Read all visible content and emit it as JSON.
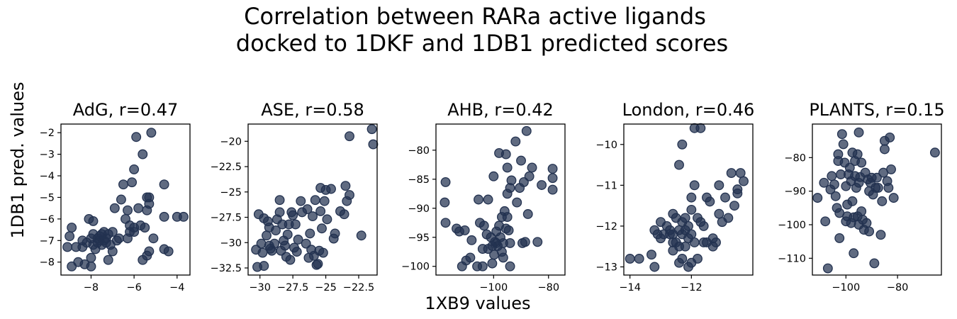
{
  "figure": {
    "title_line1": "Correlation between RARa active ligands",
    "title_line2": "docked to 1DKF and 1DB1 predicted scores",
    "xlabel": "1XB9 values",
    "ylabel": "1DB1 pred. values",
    "marker_color": "#233250"
  },
  "chart_data": [
    {
      "type": "scatter",
      "title": "AdG, r=0.47",
      "xlim": [
        -9.4,
        -3.4
      ],
      "ylim": [
        -8.6,
        -1.6
      ],
      "xticks": [
        -8,
        -6,
        -4
      ],
      "yticks": [
        -8,
        -7,
        -6,
        -5,
        -4,
        -3,
        -2
      ],
      "points": [
        [
          -9.1,
          -7.3
        ],
        [
          -9.0,
          -6.8
        ],
        [
          -8.9,
          -6.4
        ],
        [
          -8.9,
          -8.2
        ],
        [
          -8.7,
          -7.3
        ],
        [
          -8.6,
          -8.0
        ],
        [
          -8.4,
          -7.0
        ],
        [
          -8.4,
          -7.3
        ],
        [
          -8.3,
          -8.1
        ],
        [
          -8.2,
          -7.1
        ],
        [
          -8.1,
          -6.0
        ],
        [
          -8.0,
          -7.8
        ],
        [
          -8.0,
          -8.2
        ],
        [
          -8.0,
          -6.9
        ],
        [
          -7.9,
          -7.2
        ],
        [
          -7.9,
          -6.7
        ],
        [
          -7.9,
          -6.1
        ],
        [
          -7.8,
          -7.4
        ],
        [
          -7.7,
          -6.9
        ],
        [
          -7.7,
          -7.1
        ],
        [
          -7.6,
          -7.0
        ],
        [
          -7.6,
          -6.8
        ],
        [
          -7.5,
          -6.7
        ],
        [
          -7.5,
          -7.2
        ],
        [
          -7.4,
          -6.6
        ],
        [
          -7.4,
          -7.0
        ],
        [
          -7.3,
          -6.9
        ],
        [
          -7.3,
          -7.1
        ],
        [
          -7.2,
          -7.9
        ],
        [
          -7.2,
          -6.7
        ],
        [
          -7.1,
          -7.2
        ],
        [
          -7.0,
          -7.5
        ],
        [
          -7.0,
          -6.6
        ],
        [
          -6.9,
          -5.5
        ],
        [
          -6.8,
          -7.0
        ],
        [
          -6.7,
          -6.9
        ],
        [
          -6.6,
          -5.1
        ],
        [
          -6.5,
          -4.4
        ],
        [
          -6.4,
          -6.0
        ],
        [
          -6.3,
          -6.9
        ],
        [
          -6.3,
          -5.6
        ],
        [
          -6.2,
          -6.3
        ],
        [
          -6.2,
          -6.6
        ],
        [
          -6.1,
          -4.3
        ],
        [
          -6.0,
          -3.7
        ],
        [
          -6.0,
          -6.4
        ],
        [
          -6.0,
          -6.6
        ],
        [
          -5.9,
          -2.2
        ],
        [
          -5.8,
          -5.5
        ],
        [
          -5.7,
          -6.3
        ],
        [
          -5.6,
          -3.0
        ],
        [
          -5.6,
          -7.9
        ],
        [
          -5.5,
          -6.4
        ],
        [
          -5.4,
          -5.6
        ],
        [
          -5.4,
          -7.7
        ],
        [
          -5.4,
          -5.0
        ],
        [
          -5.3,
          -7.5
        ],
        [
          -5.3,
          -5.3
        ],
        [
          -5.3,
          -5.0
        ],
        [
          -5.2,
          -2.0
        ],
        [
          -5.1,
          -6.9
        ],
        [
          -4.6,
          -4.4
        ],
        [
          -4.6,
          -5.9
        ],
        [
          -4.6,
          -7.4
        ],
        [
          -4.4,
          -7.5
        ],
        [
          -4.0,
          -5.9
        ],
        [
          -3.7,
          -5.9
        ]
      ]
    },
    {
      "type": "scatter",
      "title": "ASE, r=0.58",
      "xlim": [
        -30.9,
        -21.1
      ],
      "ylim": [
        -33.2,
        -18.3
      ],
      "xticks": [
        -30.0,
        -27.5,
        -25.0,
        -22.5
      ],
      "yticks": [
        -32.5,
        -30.0,
        -27.5,
        -25.0,
        -22.5,
        -20.0
      ],
      "points": [
        [
          -30.3,
          -30.7
        ],
        [
          -30.2,
          -32.4
        ],
        [
          -30.1,
          -27.2
        ],
        [
          -29.9,
          -30.1
        ],
        [
          -29.8,
          -31.0
        ],
        [
          -29.7,
          -32.3
        ],
        [
          -29.7,
          -27.6
        ],
        [
          -29.5,
          -29.3
        ],
        [
          -29.4,
          -27.9
        ],
        [
          -29.3,
          -28.5
        ],
        [
          -29.3,
          -30.3
        ],
        [
          -29.2,
          -30.6
        ],
        [
          -29.1,
          -30.8
        ],
        [
          -28.9,
          -30.1
        ],
        [
          -28.8,
          -28.8
        ],
        [
          -28.7,
          -27.7
        ],
        [
          -28.5,
          -25.8
        ],
        [
          -28.5,
          -27.0
        ],
        [
          -28.4,
          -30.8
        ],
        [
          -28.3,
          -28.2
        ],
        [
          -28.2,
          -29.8
        ],
        [
          -28.1,
          -30.3
        ],
        [
          -28.0,
          -31.4
        ],
        [
          -27.9,
          -29.2
        ],
        [
          -27.8,
          -28.2
        ],
        [
          -27.7,
          -31.7
        ],
        [
          -27.6,
          -27.0
        ],
        [
          -27.5,
          -27.3
        ],
        [
          -27.4,
          -30.5
        ],
        [
          -27.3,
          -28.2
        ],
        [
          -27.2,
          -30.9
        ],
        [
          -27.1,
          -29.7
        ],
        [
          -26.9,
          -25.9
        ],
        [
          -26.8,
          -27.0
        ],
        [
          -26.5,
          -30.1
        ],
        [
          -26.4,
          -26.7
        ],
        [
          -26.3,
          -31.5
        ],
        [
          -26.2,
          -29.1
        ],
        [
          -26.1,
          -30.7
        ],
        [
          -26.0,
          -27.4
        ],
        [
          -25.9,
          -31.3
        ],
        [
          -25.8,
          -25.8
        ],
        [
          -25.7,
          -32.2
        ],
        [
          -25.6,
          -32.1
        ],
        [
          -25.5,
          -30.8
        ],
        [
          -25.4,
          -24.6
        ],
        [
          -25.4,
          -26.9
        ],
        [
          -25.3,
          -28.6
        ],
        [
          -25.2,
          -31.0
        ],
        [
          -25.1,
          -25.9
        ],
        [
          -25.0,
          -24.8
        ],
        [
          -24.9,
          -27.7
        ],
        [
          -24.6,
          -24.7
        ],
        [
          -24.4,
          -29.6
        ],
        [
          -24.3,
          -29.1
        ],
        [
          -23.9,
          -26.9
        ],
        [
          -23.6,
          -27.2
        ],
        [
          -23.5,
          -24.4
        ],
        [
          -23.4,
          -25.9
        ],
        [
          -23.2,
          -25.3
        ],
        [
          -23.2,
          -19.5
        ],
        [
          -22.3,
          -29.3
        ],
        [
          -21.5,
          -18.8
        ],
        [
          -21.4,
          -20.3
        ]
      ]
    },
    {
      "type": "scatter",
      "title": "AHB, r=0.42",
      "xlim": [
        -121,
        -74
      ],
      "ylim": [
        -101.5,
        -75.5
      ],
      "xticks": [
        -100,
        -80
      ],
      "yticks": [
        -100,
        -95,
        -90,
        -85,
        -80
      ],
      "points": [
        [
          -117.5,
          -85.5
        ],
        [
          -117.8,
          -89.0
        ],
        [
          -117.5,
          -92.5
        ],
        [
          -113.5,
          -93.5
        ],
        [
          -112.5,
          -94.0
        ],
        [
          -111.5,
          -100.0
        ],
        [
          -110.5,
          -93.8
        ],
        [
          -110.0,
          -99.0
        ],
        [
          -108.5,
          -98.5
        ],
        [
          -108.0,
          -95.5
        ],
        [
          -106.0,
          -100.0
        ],
        [
          -105.5,
          -88.5
        ],
        [
          -105.0,
          -92.5
        ],
        [
          -104.0,
          -97.0
        ],
        [
          -104.0,
          -100.0
        ],
        [
          -103.5,
          -93.0
        ],
        [
          -102.5,
          -94.5
        ],
        [
          -102.0,
          -88.5
        ],
        [
          -102.0,
          -97.0
        ],
        [
          -101.0,
          -95.0
        ],
        [
          -100.5,
          -96.5
        ],
        [
          -100.5,
          -99.5
        ],
        [
          -100.0,
          -84.5
        ],
        [
          -99.8,
          -98.0
        ],
        [
          -99.5,
          -95.8
        ],
        [
          -99.0,
          -94.0
        ],
        [
          -99.0,
          -96.0
        ],
        [
          -98.5,
          -96.5
        ],
        [
          -98.0,
          -93.0
        ],
        [
          -98.0,
          -80.5
        ],
        [
          -97.5,
          -95.0
        ],
        [
          -97.0,
          -91.5
        ],
        [
          -97.0,
          -97.5
        ],
        [
          -96.5,
          -96.0
        ],
        [
          -96.5,
          -98.5
        ],
        [
          -96.0,
          -90.5
        ],
        [
          -95.5,
          -80.7
        ],
        [
          -95.5,
          -93.5
        ],
        [
          -95.0,
          -83.0
        ],
        [
          -95.0,
          -87.5
        ],
        [
          -95.0,
          -91.5
        ],
        [
          -94.5,
          -93.8
        ],
        [
          -94.0,
          -86.5
        ],
        [
          -94.0,
          -96.0
        ],
        [
          -94.0,
          -100.0
        ],
        [
          -93.5,
          -85.2
        ],
        [
          -92.0,
          -78.5
        ],
        [
          -91.5,
          -89.0
        ],
        [
          -90.5,
          -86.5
        ],
        [
          -90.0,
          -81.8
        ],
        [
          -89.5,
          -96.0
        ],
        [
          -89.0,
          -85.5
        ],
        [
          -88.5,
          -95.8
        ],
        [
          -88.0,
          -76.7
        ],
        [
          -87.5,
          -91.0
        ],
        [
          -87.0,
          -84.5
        ],
        [
          -86.0,
          -83.0
        ],
        [
          -84.0,
          -95.8
        ],
        [
          -82.5,
          -86.0
        ],
        [
          -78.5,
          -83.2
        ],
        [
          -78.5,
          -84.8
        ],
        [
          -78.5,
          -86.8
        ]
      ]
    },
    {
      "type": "scatter",
      "title": "London, r=0.46",
      "xlim": [
        -14.2,
        -10.0
      ],
      "ylim": [
        -13.2,
        -9.5
      ],
      "xticks": [
        -14,
        -12
      ],
      "yticks": [
        -13,
        -12,
        -11,
        -10
      ],
      "points": [
        [
          -14.0,
          -12.8
        ],
        [
          -13.7,
          -12.8
        ],
        [
          -13.3,
          -12.7
        ],
        [
          -13.2,
          -13.0
        ],
        [
          -13.2,
          -12.1
        ],
        [
          -13.1,
          -12.2
        ],
        [
          -13.0,
          -11.9
        ],
        [
          -13.0,
          -12.3
        ],
        [
          -12.9,
          -12.2
        ],
        [
          -12.8,
          -12.0
        ],
        [
          -12.7,
          -12.1
        ],
        [
          -12.7,
          -12.2
        ],
        [
          -12.6,
          -11.7
        ],
        [
          -12.6,
          -12.2
        ],
        [
          -12.6,
          -12.4
        ],
        [
          -12.6,
          -12.6
        ],
        [
          -12.5,
          -11.8
        ],
        [
          -12.5,
          -12.4
        ],
        [
          -12.4,
          -12.5
        ],
        [
          -12.4,
          -12.1
        ],
        [
          -12.4,
          -12.9
        ],
        [
          -12.3,
          -11.9
        ],
        [
          -12.3,
          -12.2
        ],
        [
          -12.3,
          -12.8
        ],
        [
          -12.2,
          -12.5
        ],
        [
          -12.2,
          -11.8
        ],
        [
          -12.2,
          -12.1
        ],
        [
          -12.1,
          -13.0
        ],
        [
          -12.1,
          -12.0
        ],
        [
          -12.1,
          -12.3
        ],
        [
          -12.0,
          -12.2
        ],
        [
          -12.0,
          -12.9
        ],
        [
          -12.0,
          -11.3
        ],
        [
          -12.0,
          -11.6
        ],
        [
          -11.9,
          -9.6
        ],
        [
          -11.9,
          -11.0
        ],
        [
          -11.9,
          -12.4
        ],
        [
          -11.8,
          -12.8
        ],
        [
          -11.8,
          -11.8
        ],
        [
          -11.7,
          -9.6
        ],
        [
          -11.7,
          -11.9
        ],
        [
          -11.6,
          -12.0
        ],
        [
          -11.6,
          -12.4
        ],
        [
          -11.5,
          -11.3
        ],
        [
          -11.5,
          -12.4
        ],
        [
          -11.4,
          -11.4
        ],
        [
          -11.3,
          -12.5
        ],
        [
          -11.3,
          -12.3
        ],
        [
          -12.3,
          -10.0
        ],
        [
          -12.4,
          -10.5
        ],
        [
          -11.2,
          -12.4
        ],
        [
          -11.1,
          -11.7
        ],
        [
          -11.1,
          -11.0
        ],
        [
          -11.0,
          -11.9
        ],
        [
          -10.9,
          -11.3
        ],
        [
          -10.8,
          -11.8
        ],
        [
          -10.7,
          -10.7
        ],
        [
          -10.6,
          -11.5
        ],
        [
          -10.5,
          -11.1
        ],
        [
          -10.5,
          -11.2
        ],
        [
          -10.4,
          -10.7
        ],
        [
          -10.3,
          -10.9
        ]
      ]
    },
    {
      "type": "scatter",
      "title": "PLANTS, r=0.15",
      "xlim": [
        -113,
        -63
      ],
      "ylim": [
        -115,
        -70
      ],
      "xticks": [
        -100,
        -80
      ],
      "yticks": [
        -110,
        -100,
        -90,
        -80
      ],
      "points": [
        [
          -111.0,
          -92.0
        ],
        [
          -108.5,
          -87.5
        ],
        [
          -108.0,
          -99.0
        ],
        [
          -107.0,
          -113.0
        ],
        [
          -106.0,
          -89.5
        ],
        [
          -105.5,
          -85.5
        ],
        [
          -104.5,
          -88.0
        ],
        [
          -104.0,
          -91.5
        ],
        [
          -103.5,
          -95.0
        ],
        [
          -103.0,
          -79.0
        ],
        [
          -103.0,
          -81.0
        ],
        [
          -102.5,
          -96.5
        ],
        [
          -102.5,
          -104.0
        ],
        [
          -102.0,
          -85.0
        ],
        [
          -101.5,
          -73.0
        ],
        [
          -101.0,
          -76.0
        ],
        [
          -100.5,
          -81.5
        ],
        [
          -100.0,
          -88.5
        ],
        [
          -100.0,
          -99.0
        ],
        [
          -99.5,
          -94.0
        ],
        [
          -99.5,
          -97.5
        ],
        [
          -99.0,
          -85.0
        ],
        [
          -98.5,
          -83.0
        ],
        [
          -98.0,
          -87.0
        ],
        [
          -98.0,
          -99.5
        ],
        [
          -97.5,
          -78.5
        ],
        [
          -97.5,
          -93.0
        ],
        [
          -97.0,
          -97.8
        ],
        [
          -97.0,
          -108.5
        ],
        [
          -96.5,
          -81.0
        ],
        [
          -96.5,
          -85.5
        ],
        [
          -96.0,
          -89.0
        ],
        [
          -95.5,
          -79.0
        ],
        [
          -95.5,
          -97.5
        ],
        [
          -95.0,
          -100.0
        ],
        [
          -95.0,
          -87.5
        ],
        [
          -95.0,
          -72.5
        ],
        [
          -94.5,
          -85.8
        ],
        [
          -94.0,
          -81.5
        ],
        [
          -94.0,
          -96.0
        ],
        [
          -93.5,
          -98.5
        ],
        [
          -93.0,
          -101.5
        ],
        [
          -92.5,
          -84.5
        ],
        [
          -92.0,
          -99.5
        ],
        [
          -91.5,
          -86.5
        ],
        [
          -91.0,
          -90.0
        ],
        [
          -91.0,
          -102.0
        ],
        [
          -90.5,
          -87.5
        ],
        [
          -90.0,
          -86.0
        ],
        [
          -89.5,
          -91.0
        ],
        [
          -89.0,
          -111.5
        ],
        [
          -88.5,
          -89.0
        ],
        [
          -88.0,
          -86.0
        ],
        [
          -87.5,
          -89.0
        ],
        [
          -86.5,
          -103.0
        ],
        [
          -86.0,
          -93.0
        ],
        [
          -85.5,
          -84.5
        ],
        [
          -85.0,
          -75.0
        ],
        [
          -85.0,
          -77.5
        ],
        [
          -84.0,
          -87.0
        ],
        [
          -83.5,
          -89.0
        ],
        [
          -83.0,
          -74.0
        ],
        [
          -82.5,
          -83.5
        ],
        [
          -81.5,
          -92.0
        ],
        [
          -65.5,
          -78.5
        ]
      ]
    }
  ]
}
